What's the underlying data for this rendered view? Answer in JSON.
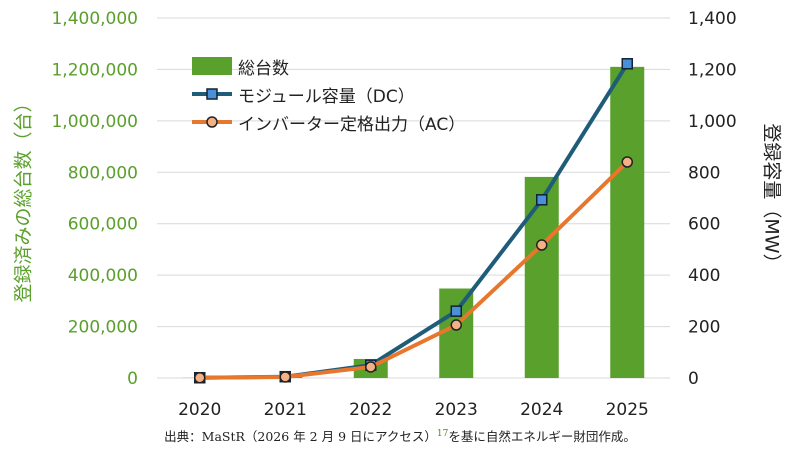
{
  "chart_data": {
    "type": "bar+line",
    "categories": [
      "2020",
      "2021",
      "2022",
      "2023",
      "2024",
      "2025"
    ],
    "series": [
      {
        "name": "総台数",
        "type": "bar",
        "axis": "left",
        "color": "#5aa02c",
        "values": [
          500,
          5000,
          74000,
          348000,
          782000,
          1210000
        ]
      },
      {
        "name": "モジュール容量（DC）",
        "type": "line",
        "axis": "right",
        "color": "#1f5c7a",
        "marker": "square",
        "marker_color": "#4a90d9",
        "values": [
          1,
          5,
          50,
          260,
          693,
          1222
        ]
      },
      {
        "name": "インバーター定格出力（AC）",
        "type": "line",
        "axis": "right",
        "color": "#e8772e",
        "marker": "circle",
        "marker_color": "#f4b183",
        "values": [
          1,
          4,
          43,
          206,
          517,
          840
        ]
      }
    ],
    "ylabel_left": "登録済みの総台数（台）",
    "ylabel_right": "登録容量（MW）",
    "ylim_left": [
      0,
      1400000
    ],
    "ylim_right": [
      0,
      1400
    ],
    "yticks_left": [
      "0",
      "200,000",
      "400,000",
      "600,000",
      "800,000",
      "1,000,000",
      "1,200,000",
      "1,400,000"
    ],
    "yticks_right": [
      "0",
      "200",
      "400",
      "600",
      "800",
      "1,000",
      "1,200",
      "1,400"
    ],
    "grid": true,
    "legend_position": "top-left"
  },
  "source": {
    "prefix": "出典：MaStR（2026 年 2 月 9 日にアクセス）",
    "sup": "17",
    "suffix": "を基に自然エネルギー財団作成。"
  }
}
